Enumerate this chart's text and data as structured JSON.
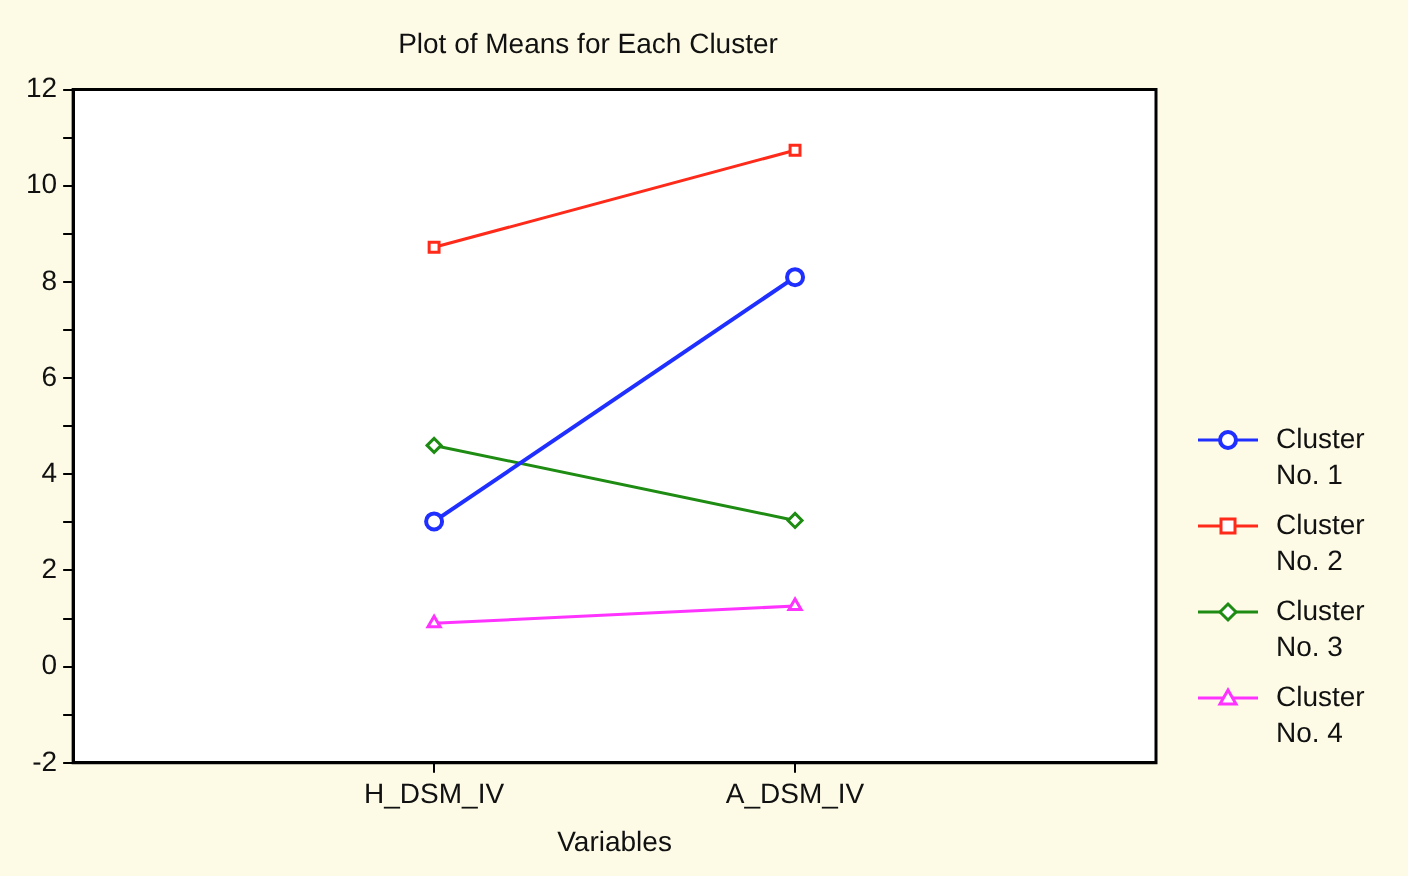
{
  "chart_data": {
    "type": "line",
    "title": "Plot of Means for Each Cluster",
    "xlabel": "Variables",
    "categories": [
      "H_DSM_IV",
      "A_DSM_IV"
    ],
    "series": [
      {
        "name": "Cluster No. 1",
        "color": "#1f2fff",
        "marker": "circle",
        "values": [
          3.02,
          8.1
        ]
      },
      {
        "name": "Cluster No. 2",
        "color": "#ff2a1a",
        "marker": "square",
        "values": [
          8.72,
          10.74
        ]
      },
      {
        "name": "Cluster No. 3",
        "color": "#1e8c12",
        "marker": "diamond",
        "values": [
          4.6,
          3.04
        ]
      },
      {
        "name": "Cluster No. 4",
        "color": "#ff33ff",
        "marker": "triangle",
        "values": [
          0.9,
          1.26
        ]
      }
    ],
    "ylim": [
      -2,
      12
    ],
    "yticks": [
      -2,
      {
        "value": -1,
        "label": null
      },
      0,
      {
        "value": 1,
        "label": null
      },
      2,
      {
        "value": 3,
        "label": null
      },
      4,
      {
        "value": 5,
        "label": null
      },
      6,
      {
        "value": 7,
        "label": null
      },
      8,
      {
        "value": 9,
        "label": null
      },
      10,
      {
        "value": 11,
        "label": null
      },
      12
    ],
    "grid": false,
    "legend": "right",
    "line_style": "solid"
  }
}
